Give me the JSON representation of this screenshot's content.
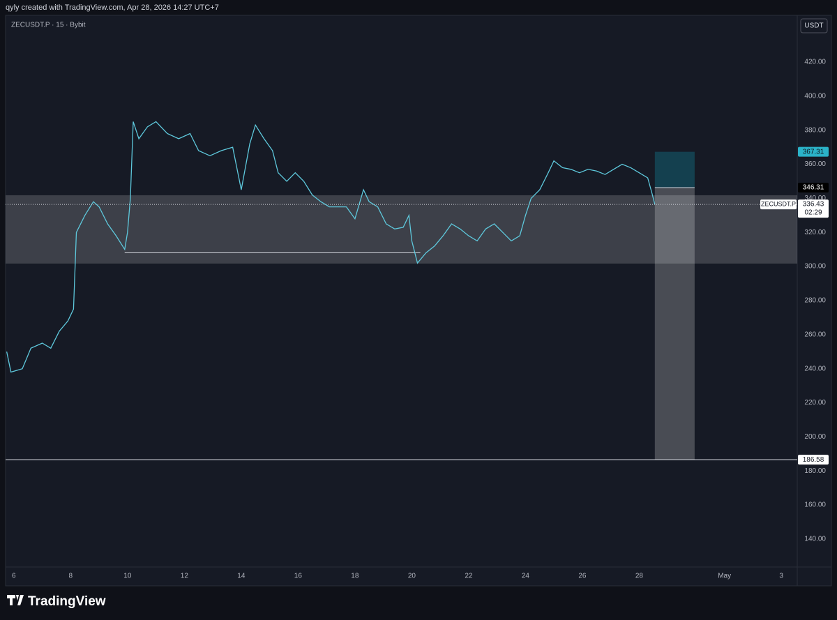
{
  "header": "qyly created with TradingView.com, Apr 28, 2026 14:27 UTC+7",
  "footer_logo": "TradingView",
  "chart_data": {
    "type": "line",
    "title": "ZECUSDT.P · 15 · Bybit",
    "currency": "USDT",
    "color": "#5ec8dc",
    "grid": false,
    "x": [
      5.75,
      5.9,
      6.3,
      6.6,
      7.0,
      7.3,
      7.6,
      7.9,
      8.1,
      8.2,
      8.5,
      8.8,
      9.0,
      9.3,
      9.6,
      9.9,
      10.0,
      10.1,
      10.2,
      10.4,
      10.7,
      11.0,
      11.4,
      11.8,
      12.2,
      12.5,
      12.9,
      13.3,
      13.7,
      14.0,
      14.3,
      14.5,
      14.8,
      15.1,
      15.3,
      15.6,
      15.9,
      16.2,
      16.5,
      16.8,
      17.1,
      17.4,
      17.7,
      18.0,
      18.3,
      18.5,
      18.8,
      19.1,
      19.4,
      19.7,
      19.9,
      20.0,
      20.2,
      20.5,
      20.8,
      21.1,
      21.4,
      21.7,
      22.0,
      22.3,
      22.6,
      22.9,
      23.2,
      23.5,
      23.8,
      24.0,
      24.2,
      24.5,
      24.8,
      25.0,
      25.3,
      25.6,
      25.9,
      26.2,
      26.5,
      26.8,
      27.1,
      27.4,
      27.7,
      28.0,
      28.3,
      28.45,
      28.55
    ],
    "values": [
      250,
      238,
      240,
      252,
      255,
      252,
      262,
      268,
      275,
      320,
      330,
      338,
      335,
      325,
      318,
      310,
      320,
      340,
      385,
      375,
      382,
      385,
      378,
      375,
      378,
      368,
      365,
      368,
      370,
      345,
      372,
      383,
      375,
      368,
      355,
      350,
      355,
      350,
      342,
      338,
      335,
      335,
      335,
      328,
      345,
      338,
      335,
      325,
      322,
      323,
      330,
      315,
      302,
      308,
      312,
      318,
      325,
      322,
      318,
      315,
      322,
      325,
      320,
      315,
      318,
      330,
      340,
      345,
      355,
      362,
      358,
      357,
      355,
      357,
      356,
      354,
      357,
      360,
      358,
      355,
      352,
      343,
      336.43
    ],
    "xlim": [
      5.71,
      33.56
    ],
    "xticks": [
      6,
      8,
      10,
      12,
      14,
      16,
      18,
      20,
      22,
      24,
      26,
      28,
      {
        "value": 31,
        "label": "May"
      },
      {
        "value": 33,
        "label": "3"
      }
    ],
    "ylim": [
      123.6,
      447.4
    ],
    "yticks": [
      {
        "value": 140,
        "label": "140.00"
      },
      {
        "value": 160,
        "label": "160.00"
      },
      {
        "value": 180,
        "label": "180.00"
      },
      {
        "value": 200,
        "label": "200.00"
      },
      {
        "value": 220,
        "label": "220.00"
      },
      {
        "value": 240,
        "label": "240.00"
      },
      {
        "value": 260,
        "label": "260.00"
      },
      {
        "value": 280,
        "label": "280.00"
      },
      {
        "value": 300,
        "label": "300.00"
      },
      {
        "value": 320,
        "label": "320.00"
      },
      {
        "value": 340,
        "label": "340.00"
      },
      {
        "value": 360,
        "label": "360.00"
      },
      {
        "value": 380,
        "label": "380.00"
      },
      {
        "value": 400,
        "label": "400.00"
      },
      {
        "value": 420,
        "label": "420.00"
      }
    ],
    "zone": {
      "low": 301.7,
      "high": 341.8
    },
    "support": {
      "value": 308,
      "x": [
        9.9,
        20.3
      ]
    },
    "position": {
      "entry": 346.31,
      "target": 367.31,
      "stop": 186.58,
      "x": [
        28.55,
        29.95
      ]
    },
    "last_price": {
      "label": "ZECUSDT.P",
      "value": 336.43,
      "countdown": "02:29"
    }
  }
}
